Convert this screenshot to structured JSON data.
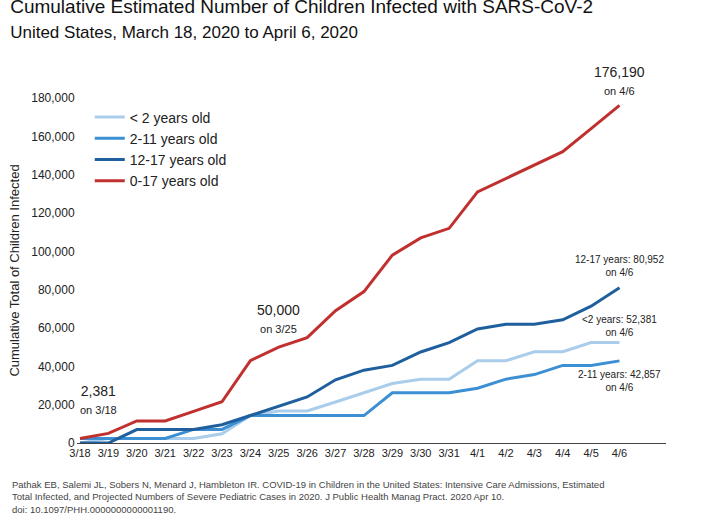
{
  "chart_data": {
    "type": "line",
    "title": "Cumulative Estimated Number of Children Infected with SARS-CoV-2",
    "subtitle": "United States, March 18, 2020 to April 6, 2020",
    "y_label": "Cumulative Total of Children Infected",
    "categories": [
      "3/18",
      "3/19",
      "3/20",
      "3/21",
      "3/22",
      "3/23",
      "3/24",
      "3/25",
      "3/26",
      "3/27",
      "3/28",
      "3/29",
      "3/30",
      "3/31",
      "4/1",
      "4/2",
      "4/3",
      "4/4",
      "4/5",
      "4/6"
    ],
    "series": [
      {
        "name": "< 2 years old",
        "color": "#a9cdea",
        "values": [
          0,
          2400,
          2400,
          2400,
          2400,
          4800,
          14300,
          16700,
          16700,
          21400,
          26200,
          31000,
          33300,
          33300,
          42900,
          42900,
          47600,
          47600,
          52400,
          52381
        ]
      },
      {
        "name": "2-11 years old",
        "color": "#3d8fd4",
        "values": [
          2381,
          2400,
          2400,
          2400,
          7100,
          7100,
          14300,
          14300,
          14300,
          14300,
          14300,
          26200,
          26200,
          26200,
          28600,
          33300,
          35700,
          40500,
          40500,
          42857
        ]
      },
      {
        "name": "12-17 years old",
        "color": "#1f5f9e",
        "values": [
          0,
          0,
          7000,
          7000,
          7000,
          9500,
          14300,
          19000,
          24000,
          33000,
          38000,
          40500,
          47500,
          52400,
          59500,
          62000,
          62000,
          64300,
          71400,
          80952
        ]
      },
      {
        "name": "0-17 years old",
        "color": "#c0302e",
        "values": [
          2381,
          5000,
          11500,
          11500,
          16500,
          21500,
          43000,
          50000,
          55000,
          69000,
          79000,
          98000,
          107000,
          112000,
          131000,
          138000,
          145000,
          152000,
          164000,
          176190
        ]
      }
    ],
    "ylim": [
      0,
      180000
    ],
    "yticks": [
      0,
      {
        "value": 20000,
        "label": "20,000"
      },
      {
        "value": 40000,
        "label": "40,000"
      },
      {
        "value": 60000,
        "label": "60,000"
      },
      {
        "value": 80000,
        "label": "80,000"
      },
      {
        "value": 100000,
        "label": "100,000"
      },
      {
        "value": 120000,
        "label": "120,000"
      },
      {
        "value": 140000,
        "label": "140,000"
      },
      {
        "value": 160000,
        "label": "160,000"
      },
      {
        "value": 180000,
        "label": "180,000"
      }
    ],
    "grid": false,
    "legend": "upper left",
    "annotations": [
      {
        "text": [
          "2,381",
          "on 3/18"
        ],
        "x": "3/18",
        "y": 2381
      },
      {
        "text": [
          "50,000",
          "on 3/25"
        ],
        "x": "3/25",
        "y": 50000
      },
      {
        "text": [
          "176,190",
          "on 4/6"
        ],
        "x": "4/6",
        "y": 176190
      },
      {
        "text": [
          "12-17 years: 80,952",
          "on 4/6"
        ],
        "x": "4/6",
        "y": 80952
      },
      {
        "text": [
          "<2 years: 52,381",
          "on 4/6"
        ],
        "x": "4/6",
        "y": 52381
      },
      {
        "text": [
          "2-11 years: 42,857",
          "on 4/6"
        ],
        "x": "4/6",
        "y": 42857
      }
    ],
    "source": [
      "Pathak EB, Salemi JL, Sobers N, Menard J, Hambleton IR. COVID-19 in Children in the United States: Intensive Care Admissions, Estimated",
      "Total Infected, and Projected Numbers of Severe Pediatric Cases in 2020. J Public Health Manag Pract. 2020 Apr 10.",
      "doi: 10.1097/PHH.0000000000001190."
    ]
  }
}
